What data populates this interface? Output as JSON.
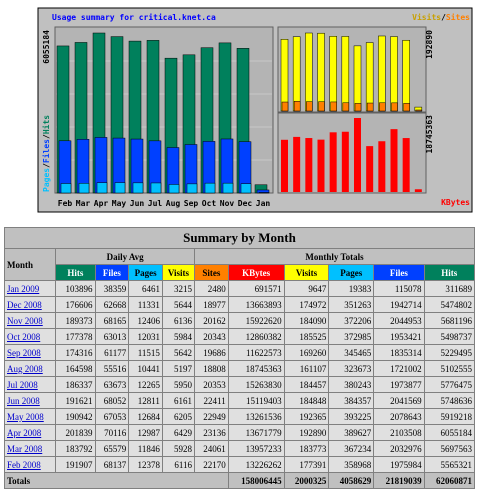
{
  "chart": {
    "title": "Usage summary for critical.knet.ca",
    "hits_max": 6055184,
    "visits_max": 192890,
    "kbytes_max": 18745363,
    "legend_left": [
      "Pages",
      "Files",
      "Hits"
    ],
    "legend_top_right": [
      "Visits",
      "Sites"
    ],
    "separator": "/",
    "legend_bottom_right": "KBytes",
    "months": [
      "Feb",
      "Mar",
      "Apr",
      "May",
      "Jun",
      "Jul",
      "Aug",
      "Sep",
      "Oct",
      "Nov",
      "Dec",
      "Jan"
    ]
  },
  "table": {
    "title": "Summary by Month",
    "month_header": "Month",
    "daily_header": "Daily Avg",
    "monthly_header": "Monthly Totals",
    "columns": [
      "Hits",
      "Files",
      "Pages",
      "Visits",
      "Sites",
      "KBytes",
      "Visits",
      "Pages",
      "Files",
      "Hits"
    ],
    "rows": [
      [
        "Jan 2009",
        103896,
        38359,
        6461,
        3215,
        2480,
        691571,
        9647,
        19383,
        115078,
        311689
      ],
      [
        "Dec 2008",
        176606,
        62668,
        11331,
        5644,
        18977,
        13663893,
        174972,
        351263,
        1942714,
        5474802
      ],
      [
        "Nov 2008",
        189373,
        68165,
        12406,
        6136,
        20162,
        15922620,
        184090,
        372206,
        2044953,
        5681196
      ],
      [
        "Oct 2008",
        177378,
        63013,
        12031,
        5984,
        20343,
        12860382,
        185525,
        372985,
        1953421,
        5498737
      ],
      [
        "Sep 2008",
        174316,
        61177,
        11515,
        5642,
        19686,
        11622573,
        169260,
        345465,
        1835314,
        5229495
      ],
      [
        "Aug 2008",
        164598,
        55516,
        10441,
        5197,
        18808,
        18745363,
        161107,
        323673,
        1721002,
        5102555
      ],
      [
        "Jul 2008",
        186337,
        63673,
        12265,
        5950,
        20353,
        15263830,
        184457,
        380243,
        1973877,
        5776475
      ],
      [
        "Jun 2008",
        191621,
        68052,
        12811,
        6161,
        22411,
        15119403,
        184848,
        384357,
        2041569,
        5748636
      ],
      [
        "May 2008",
        190942,
        67053,
        12684,
        6205,
        22949,
        13261536,
        192365,
        393225,
        2078643,
        5919218
      ],
      [
        "Apr 2008",
        201839,
        70116,
        12987,
        6429,
        23136,
        13671779,
        192890,
        389627,
        2103508,
        6055184
      ],
      [
        "Mar 2008",
        183792,
        65579,
        11846,
        5928,
        24061,
        13957233,
        183773,
        367234,
        2032976,
        5697563
      ],
      [
        "Feb 2008",
        191907,
        68137,
        12378,
        6116,
        22170,
        13226262,
        177391,
        358968,
        1975984,
        5565321
      ]
    ],
    "totals_label": "Totals",
    "totals": [
      158006445,
      2000325,
      4058629,
      21819039,
      62060871
    ]
  }
}
